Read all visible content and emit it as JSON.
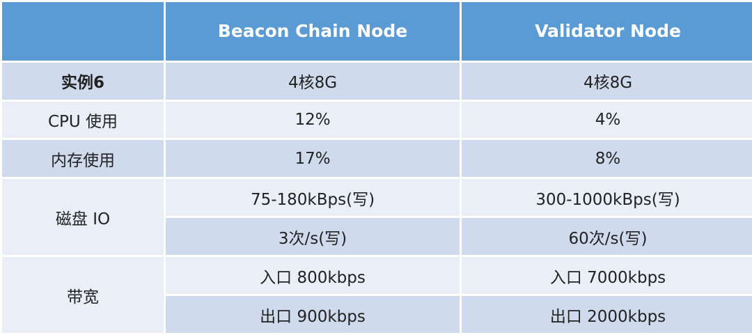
{
  "header": {
    "corner": "",
    "col2": "Beacon Chain Node",
    "col3": "Validator Node"
  },
  "rows": {
    "instance": {
      "label": "实例6",
      "beacon": "4核8G",
      "validator": "4核8G"
    },
    "cpu": {
      "label": "CPU 使用",
      "beacon": "12%",
      "validator": "4%"
    },
    "memory": {
      "label": "内存使用",
      "beacon": "17%",
      "validator": "8%"
    },
    "disk": {
      "label": "磁盘 IO",
      "beacon_1": "75-180kBps(写)",
      "validator_1": "300-1000kBps(写)",
      "beacon_2": "3次/s(写)",
      "validator_2": "60次/s(写)"
    },
    "bandwidth": {
      "label": "带宽",
      "beacon_in": "入口 800kbps",
      "validator_in": "入口 7000kbps",
      "beacon_out": "出口 900kbps",
      "validator_out": "出口 2000kbps"
    }
  },
  "colors": {
    "header_bg": "#5b9bd5",
    "row_dark": "#cfdaed",
    "row_light": "#e9eef7"
  }
}
